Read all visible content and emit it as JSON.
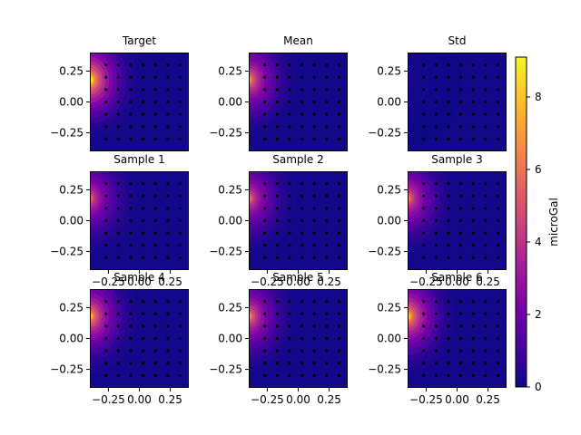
{
  "chart_data": {
    "type": "heatmap",
    "panels": [
      {
        "title": "Target",
        "kind": "field",
        "peak": 9.0,
        "show_xticks": false
      },
      {
        "title": "Mean",
        "kind": "field",
        "peak": 6.8,
        "show_xticks": false
      },
      {
        "title": "Std",
        "kind": "std",
        "peak": 0.3,
        "show_xticks": false
      },
      {
        "title": "Sample 1",
        "kind": "field",
        "peak": 5.5,
        "show_xticks": true
      },
      {
        "title": "Sample 2",
        "kind": "field",
        "peak": 5.8,
        "show_xticks": true
      },
      {
        "title": "Sample 3",
        "kind": "field",
        "peak": 6.2,
        "show_xticks": true
      },
      {
        "title": "Sample 4",
        "kind": "field",
        "peak": 7.6,
        "show_xticks": true
      },
      {
        "title": "Sample 5",
        "kind": "field",
        "peak": 6.6,
        "show_xticks": true
      },
      {
        "title": "Sample 6",
        "kind": "field",
        "peak": 8.2,
        "show_xticks": true
      }
    ],
    "xlim": [
      -0.4,
      0.4
    ],
    "ylim": [
      -0.4,
      0.4
    ],
    "xticks": [
      "−0.25",
      "0.00",
      "0.25"
    ],
    "yticks": [
      "0.25",
      "0.00",
      "−0.25"
    ],
    "source": {
      "x": -0.4,
      "y": 0.18
    },
    "stations": {
      "x_start": -0.27,
      "x_step": 0.1,
      "y_start": -0.3,
      "y_step": 0.1,
      "nx": 8,
      "ny": 8
    },
    "colorbar": {
      "label": "microGal",
      "range": [
        0,
        9.1
      ],
      "ticks": [
        "0",
        "2",
        "4",
        "6",
        "8"
      ],
      "colormap": "plasma"
    }
  }
}
